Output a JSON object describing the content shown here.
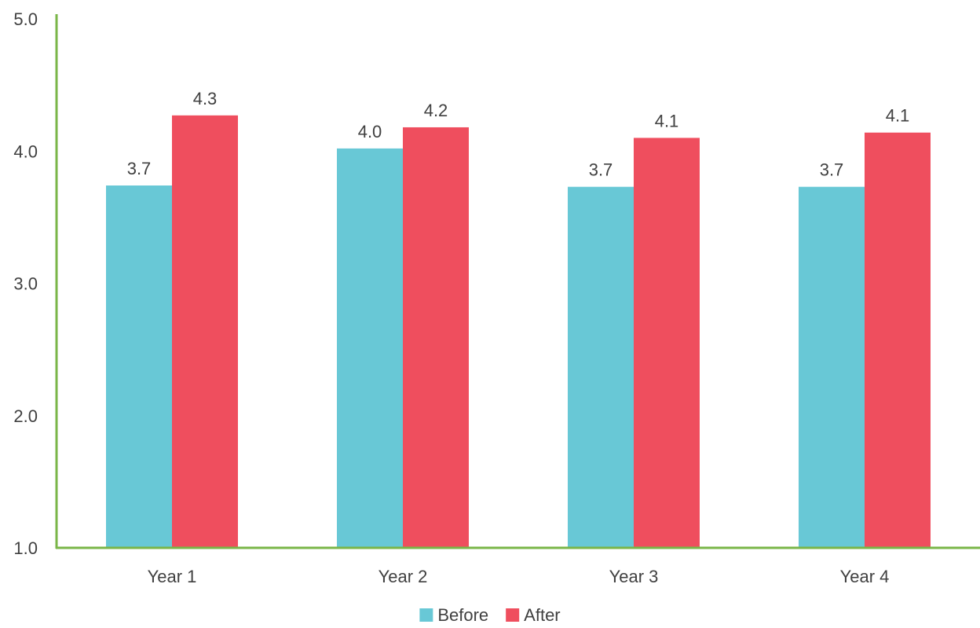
{
  "chart_data": {
    "type": "bar",
    "title": "",
    "xlabel": "",
    "ylabel": "",
    "categories": [
      "Year 1",
      "Year 2",
      "Year 3",
      "Year 4"
    ],
    "series": [
      {
        "name": "Before",
        "color": "#68c8d6",
        "values": [
          3.74,
          4.02,
          3.73,
          3.73
        ],
        "labels": [
          "3.7",
          "4.0",
          "3.7",
          "3.7"
        ]
      },
      {
        "name": "After",
        "color": "#ef4e5e",
        "values": [
          4.27,
          4.18,
          4.1,
          4.14
        ],
        "labels": [
          "4.3",
          "4.2",
          "4.1",
          "4.1"
        ]
      }
    ],
    "ylim": [
      1.0,
      5.0
    ],
    "yticks": [
      1.0,
      2.0,
      3.0,
      4.0,
      5.0
    ],
    "ytick_labels": [
      "1.0",
      "2.0",
      "3.0",
      "4.0",
      "5.0"
    ],
    "grid": false,
    "legend": "bottom-center",
    "axis_color": "#7ab648"
  }
}
